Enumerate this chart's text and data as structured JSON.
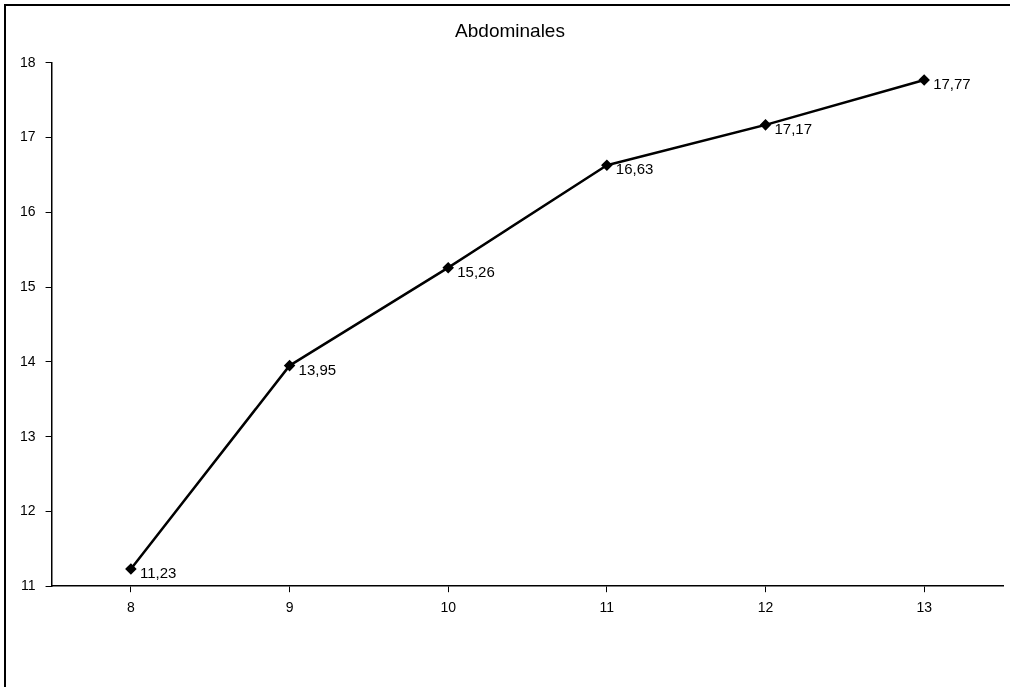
{
  "chart_data": {
    "type": "line",
    "title": "Abdominales",
    "categories": [
      "8",
      "9",
      "10",
      "11",
      "12",
      "13"
    ],
    "series": [
      {
        "color": "#000000",
        "values": [
          11.23,
          13.95,
          15.26,
          16.63,
          17.17,
          17.77
        ],
        "value_labels": [
          "11,23",
          "13,95",
          "15,26",
          "16,63",
          "17,17",
          "17,77"
        ]
      }
    ],
    "ylim": [
      11,
      18
    ],
    "yticks": [
      11,
      12,
      13,
      14,
      15,
      16,
      17,
      18
    ],
    "grid": false,
    "legend": false,
    "marker": "diamond",
    "line_style": "solid"
  }
}
